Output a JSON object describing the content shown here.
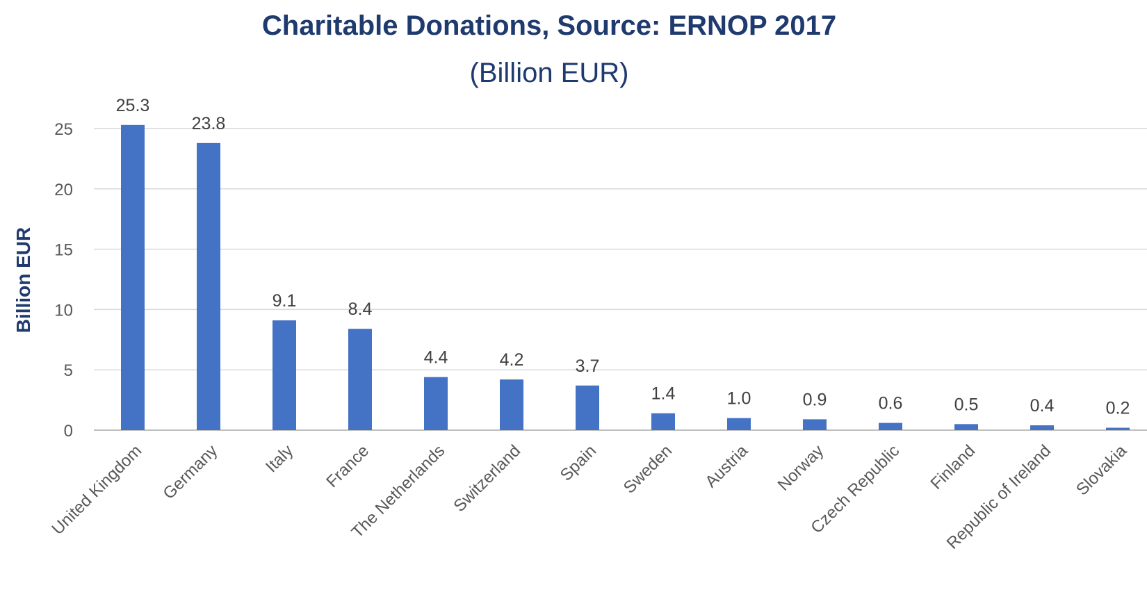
{
  "chart_data": {
    "type": "bar",
    "title": "Charitable Donations, Source: ERNOP 2017",
    "subtitle": "(Billion EUR)",
    "xlabel": "",
    "ylabel": "Billion EUR",
    "ylim": [
      0,
      25
    ],
    "yticks": [
      0,
      5,
      10,
      15,
      20,
      25
    ],
    "grid": true,
    "legend": "none",
    "bar_color": "#4472c4",
    "categories": [
      "United Kingdom",
      "Germany",
      "Italy",
      "France",
      "The Netherlands",
      "Switzerland",
      "Spain",
      "Sweden",
      "Austria",
      "Norway",
      "Czech Republic",
      "Finland",
      "Republic of Ireland",
      "Slovakia"
    ],
    "values": [
      25.3,
      23.8,
      9.1,
      8.4,
      4.4,
      4.2,
      3.7,
      1.4,
      1.0,
      0.9,
      0.6,
      0.5,
      0.4,
      0.2
    ],
    "data_labels": [
      "25.3",
      "23.8",
      "9.1",
      "8.4",
      "4.4",
      "4.2",
      "3.7",
      "1.4",
      "1.0",
      "0.9",
      "0.6",
      "0.5",
      "0.4",
      "0.2"
    ]
  }
}
